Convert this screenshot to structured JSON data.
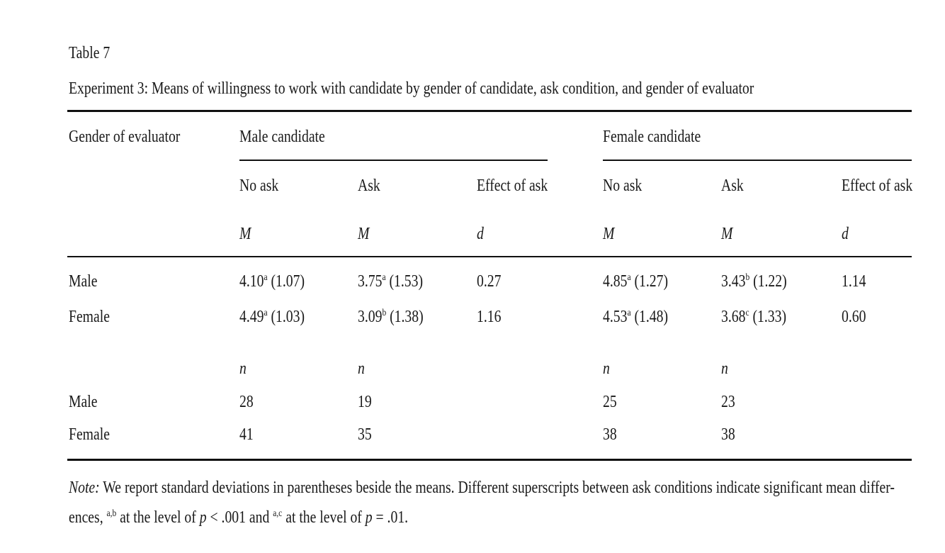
{
  "title": "Table 7",
  "caption": "Experiment 3: Means of willingness to work with candidate by gender of candidate, ask condition, and gender of evaluator",
  "table": {
    "row_header": "Gender of evaluator",
    "groups": [
      {
        "label": "Male candidate",
        "columns": [
          "No ask",
          "Ask",
          "Effect of ask"
        ],
        "stats": [
          "M",
          "M",
          "d"
        ]
      },
      {
        "label": "Female candidate",
        "columns": [
          "No ask",
          "Ask",
          "Effect of ask"
        ],
        "stats": [
          "M",
          "M",
          "d"
        ]
      }
    ],
    "mean_rows": [
      {
        "label": "Male",
        "cells": [
          {
            "mean": "4.10",
            "sup": "a",
            "sd": "(1.07)"
          },
          {
            "mean": "3.75",
            "sup": "a",
            "sd": "(1.53)"
          },
          {
            "value": "0.27"
          },
          {
            "mean": "4.85",
            "sup": "a",
            "sd": "(1.27)"
          },
          {
            "mean": "3.43",
            "sup": "b",
            "sd": "(1.22)"
          },
          {
            "value": "1.14"
          }
        ]
      },
      {
        "label": "Female",
        "cells": [
          {
            "mean": "4.49",
            "sup": "a",
            "sd": "(1.03)"
          },
          {
            "mean": "3.09",
            "sup": "b",
            "sd": "(1.38)"
          },
          {
            "value": "1.16"
          },
          {
            "mean": "4.53",
            "sup": "a",
            "sd": "(1.48)"
          },
          {
            "mean": "3.68",
            "sup": "c",
            "sd": "(1.33)"
          },
          {
            "value": "0.60"
          }
        ]
      }
    ],
    "n_header": [
      "n",
      "n",
      "n",
      "n"
    ],
    "n_rows": [
      {
        "label": "Male",
        "values": [
          28,
          19,
          25,
          23
        ]
      },
      {
        "label": "Female",
        "values": [
          41,
          35,
          38,
          38
        ]
      }
    ]
  },
  "note": {
    "label": "Note:",
    "line1": "We report standard deviations in parentheses beside the means. Different superscripts between ask conditions indicate significant mean differ-",
    "line2": [
      {
        "text": "ences, "
      },
      {
        "sup": "a,b"
      },
      {
        "text": " at the level of "
      },
      {
        "italic": "p"
      },
      {
        "text": " < .001 and "
      },
      {
        "sup": "a,c"
      },
      {
        "text": " at the level of "
      },
      {
        "italic": "p"
      },
      {
        "text": " = .01."
      }
    ]
  }
}
